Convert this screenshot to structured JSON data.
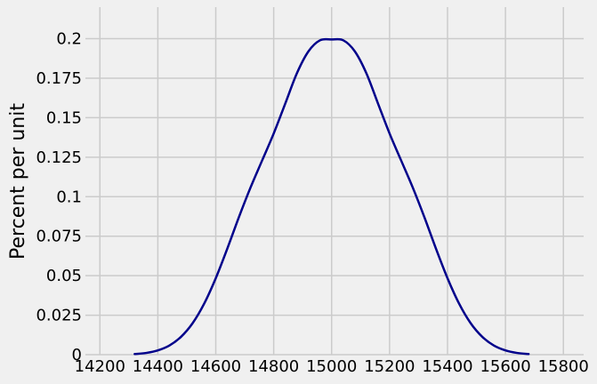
{
  "chart_data": {
    "type": "line",
    "title": "",
    "xlabel": "",
    "ylabel": "Percent per unit",
    "xlim": [
      14150,
      15870
    ],
    "ylim": [
      0,
      0.22
    ],
    "x_ticks": [
      14200,
      14400,
      14600,
      14800,
      15000,
      15200,
      15400,
      15600,
      15800
    ],
    "y_ticks": [
      0,
      0.025,
      0.05,
      0.075,
      0.1,
      0.125,
      0.15,
      0.175,
      0.2
    ],
    "x_tick_labels": [
      "14200",
      "14400",
      "14600",
      "14800",
      "15000",
      "15200",
      "15400",
      "15600",
      "15800"
    ],
    "y_tick_labels": [
      "0",
      "0.025",
      "0.05",
      "0.075",
      "0.1",
      "0.125",
      "0.15",
      "0.175",
      "0.2"
    ],
    "grid": true,
    "background_color": "#f0f0f0",
    "grid_color": "#cbcbcb",
    "series": [
      {
        "color": "#00008b",
        "x": [
          14320,
          14360,
          14400,
          14440,
          14480,
          14520,
          14560,
          14600,
          14640,
          14680,
          14720,
          14760,
          14800,
          14840,
          14880,
          14920,
          14960,
          15000,
          15040,
          15080,
          15120,
          15160,
          15200,
          15240,
          15280,
          15320,
          15360,
          15400,
          15440,
          15480,
          15520,
          15560,
          15600,
          15640,
          15680
        ],
        "y": [
          0.0004,
          0.0011,
          0.0027,
          0.0058,
          0.0113,
          0.0199,
          0.0323,
          0.0484,
          0.0672,
          0.0871,
          0.1058,
          0.1229,
          0.14,
          0.159,
          0.1781,
          0.192,
          0.199,
          0.1995,
          0.199,
          0.192,
          0.1781,
          0.159,
          0.14,
          0.1229,
          0.1058,
          0.0871,
          0.0672,
          0.0484,
          0.0323,
          0.0199,
          0.0113,
          0.0058,
          0.0027,
          0.0011,
          0.0004
        ]
      }
    ]
  }
}
